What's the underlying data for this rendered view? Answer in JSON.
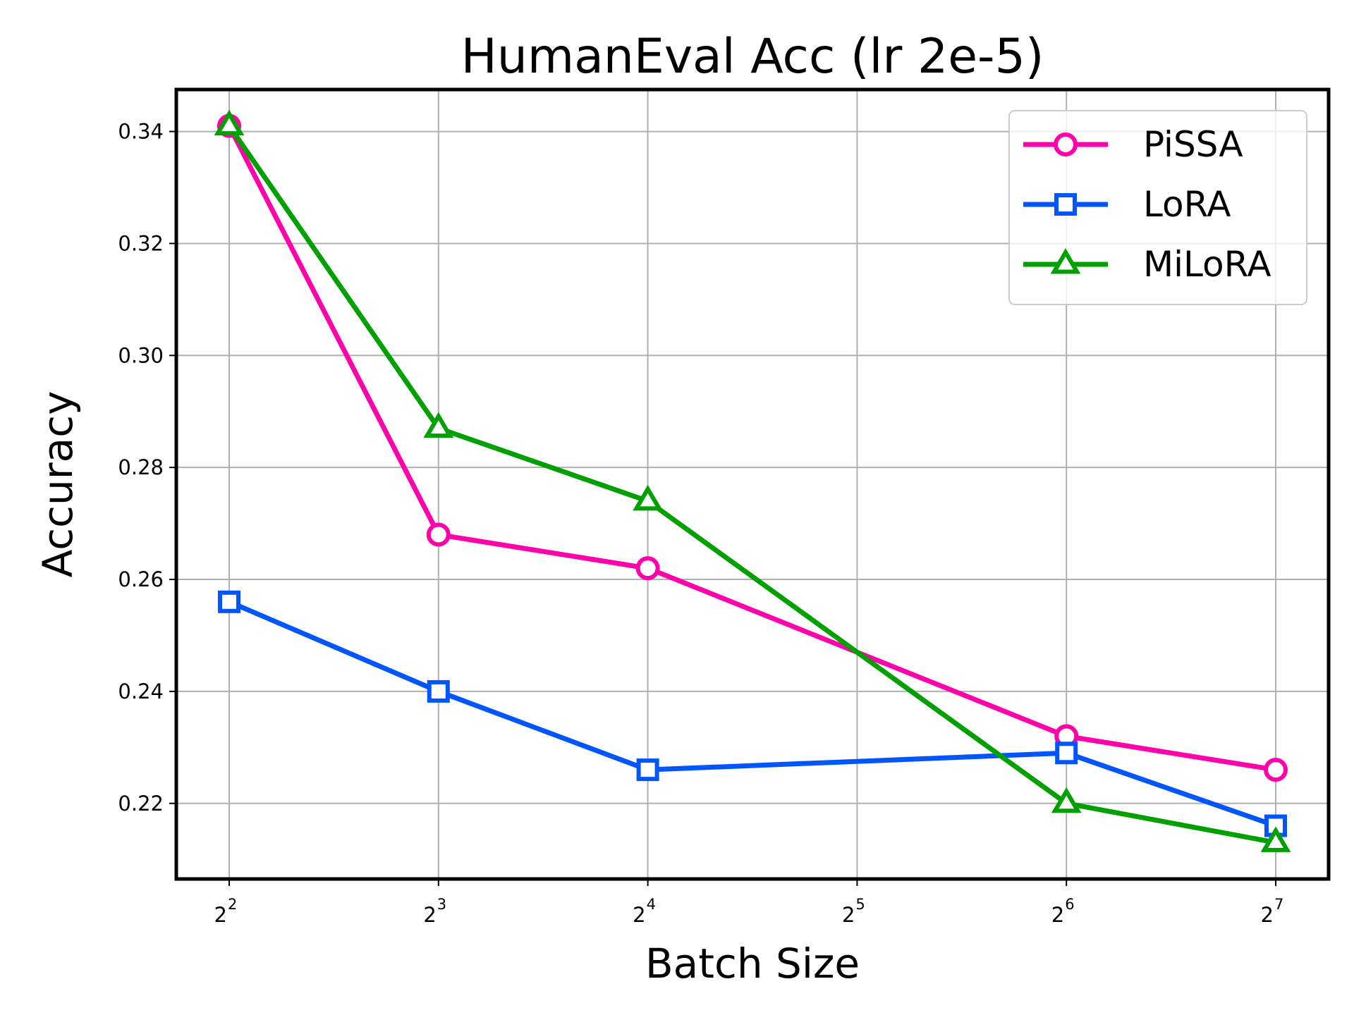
{
  "chart_data": {
    "type": "line",
    "title": "HumanEval Acc (lr 2e-5)",
    "xlabel": "Batch Size",
    "ylabel": "Accuracy",
    "x_scale": "log2",
    "x": [
      4,
      8,
      16,
      64,
      128
    ],
    "xticks": [
      {
        "value": 4,
        "base": "2",
        "exp": "2"
      },
      {
        "value": 8,
        "base": "2",
        "exp": "3"
      },
      {
        "value": 16,
        "base": "2",
        "exp": "4"
      },
      {
        "value": 32,
        "base": "2",
        "exp": "5"
      },
      {
        "value": 64,
        "base": "2",
        "exp": "6"
      },
      {
        "value": 128,
        "base": "2",
        "exp": "7"
      }
    ],
    "ylim": [
      0.2065,
      0.3475
    ],
    "yticks": [
      "0.22",
      "0.24",
      "0.26",
      "0.28",
      "0.30",
      "0.32",
      "0.34"
    ],
    "grid": true,
    "legend_position": "top-right",
    "series": [
      {
        "name": "PiSSA",
        "color": "#ff00aa",
        "marker": "circle",
        "values": [
          0.341,
          0.268,
          0.262,
          0.232,
          0.226
        ]
      },
      {
        "name": "LoRA",
        "color": "#0055ff",
        "marker": "square",
        "values": [
          0.256,
          0.24,
          0.226,
          0.229,
          0.216
        ]
      },
      {
        "name": "MiLoRA",
        "color": "#00a000",
        "marker": "triangle",
        "values": [
          0.341,
          0.287,
          0.274,
          0.22,
          0.213
        ]
      }
    ]
  }
}
